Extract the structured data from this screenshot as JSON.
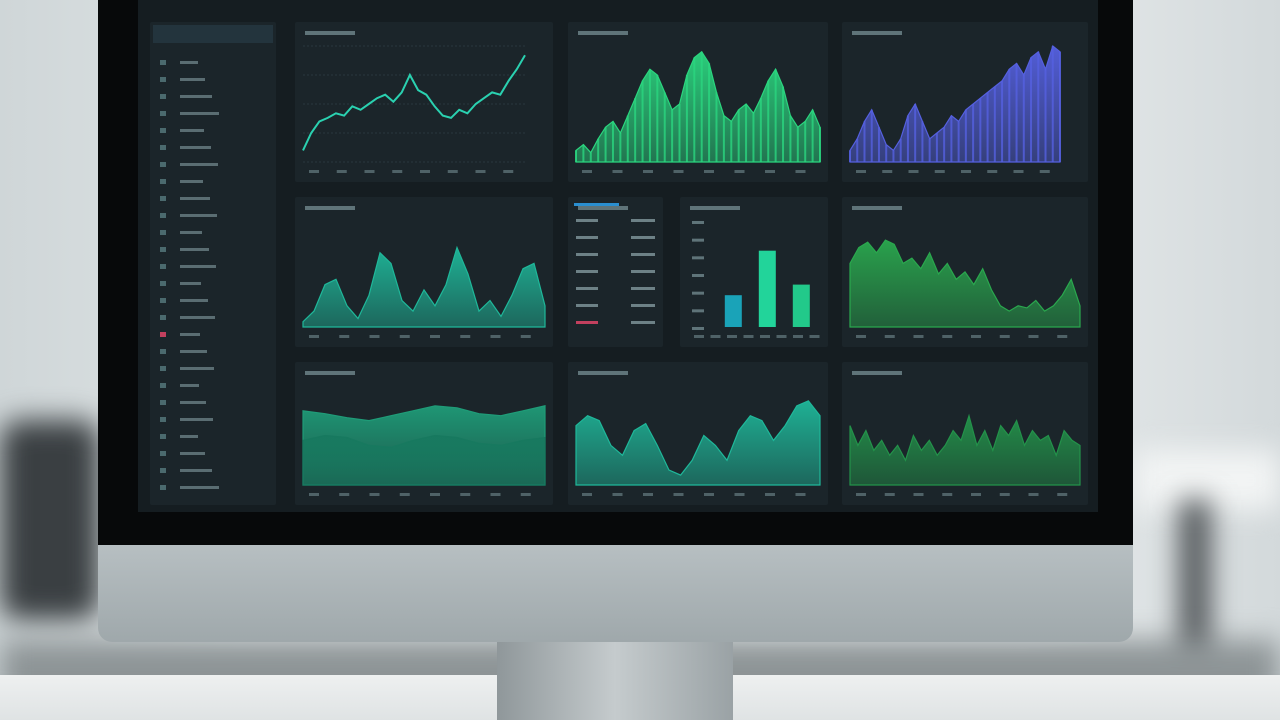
{
  "ylim": [
    0,
    100
  ],
  "panels": [
    {
      "type": "line",
      "color": "#2ad1b0",
      "values": [
        10,
        25,
        35,
        38,
        42,
        40,
        48,
        45,
        50,
        55,
        58,
        52,
        60,
        75,
        62,
        58,
        48,
        40,
        38,
        45,
        42,
        50,
        55,
        60,
        58,
        70,
        80,
        92
      ]
    },
    {
      "type": "bars",
      "color": "#2bd67f",
      "values": [
        10,
        15,
        8,
        20,
        30,
        35,
        25,
        40,
        55,
        70,
        80,
        75,
        60,
        45,
        50,
        75,
        90,
        95,
        85,
        60,
        40,
        35,
        45,
        50,
        42,
        55,
        70,
        80,
        65,
        40,
        30,
        35,
        45,
        30
      ]
    },
    {
      "type": "bars",
      "color": "#5560e0",
      "values": [
        10,
        20,
        35,
        45,
        30,
        15,
        10,
        20,
        40,
        50,
        35,
        20,
        25,
        30,
        40,
        35,
        45,
        50,
        55,
        60,
        65,
        70,
        80,
        85,
        75,
        90,
        95,
        80,
        100,
        95
      ]
    },
    {
      "type": "area",
      "color": "#1fb89a",
      "values": [
        5,
        15,
        40,
        45,
        20,
        8,
        30,
        70,
        60,
        25,
        15,
        35,
        20,
        40,
        75,
        50,
        15,
        25,
        10,
        30,
        55,
        60,
        20
      ]
    },
    {
      "type": "list"
    },
    {
      "type": "columns",
      "colors": [
        "#1aa3b8",
        "#22d49a",
        "#22c98a"
      ],
      "values": [
        30,
        72,
        40
      ]
    },
    {
      "type": "area",
      "color": "#2aa84e",
      "values": [
        60,
        75,
        80,
        70,
        82,
        78,
        60,
        65,
        55,
        70,
        50,
        60,
        45,
        52,
        40,
        55,
        35,
        20,
        15,
        20,
        18,
        25,
        15,
        20,
        30,
        45,
        20
      ]
    },
    {
      "type": "layered",
      "series": [
        {
          "color": "#1f9c78",
          "values": [
            75,
            72,
            68,
            65,
            70,
            75,
            80,
            78,
            72,
            70,
            75,
            80
          ]
        },
        {
          "color": "#17795f",
          "values": [
            45,
            50,
            48,
            40,
            38,
            45,
            50,
            48,
            42,
            40,
            45,
            48
          ]
        }
      ]
    },
    {
      "type": "area",
      "color": "#1fb89a",
      "values": [
        60,
        70,
        65,
        40,
        30,
        55,
        62,
        40,
        15,
        10,
        25,
        50,
        40,
        25,
        55,
        70,
        65,
        45,
        60,
        80,
        85,
        70
      ]
    },
    {
      "type": "area",
      "color": "#23924a",
      "values": [
        60,
        40,
        55,
        35,
        45,
        30,
        40,
        25,
        50,
        35,
        45,
        30,
        40,
        55,
        45,
        70,
        40,
        55,
        35,
        60,
        50,
        65,
        40,
        55,
        45,
        50,
        30,
        55,
        45,
        40
      ]
    }
  ]
}
